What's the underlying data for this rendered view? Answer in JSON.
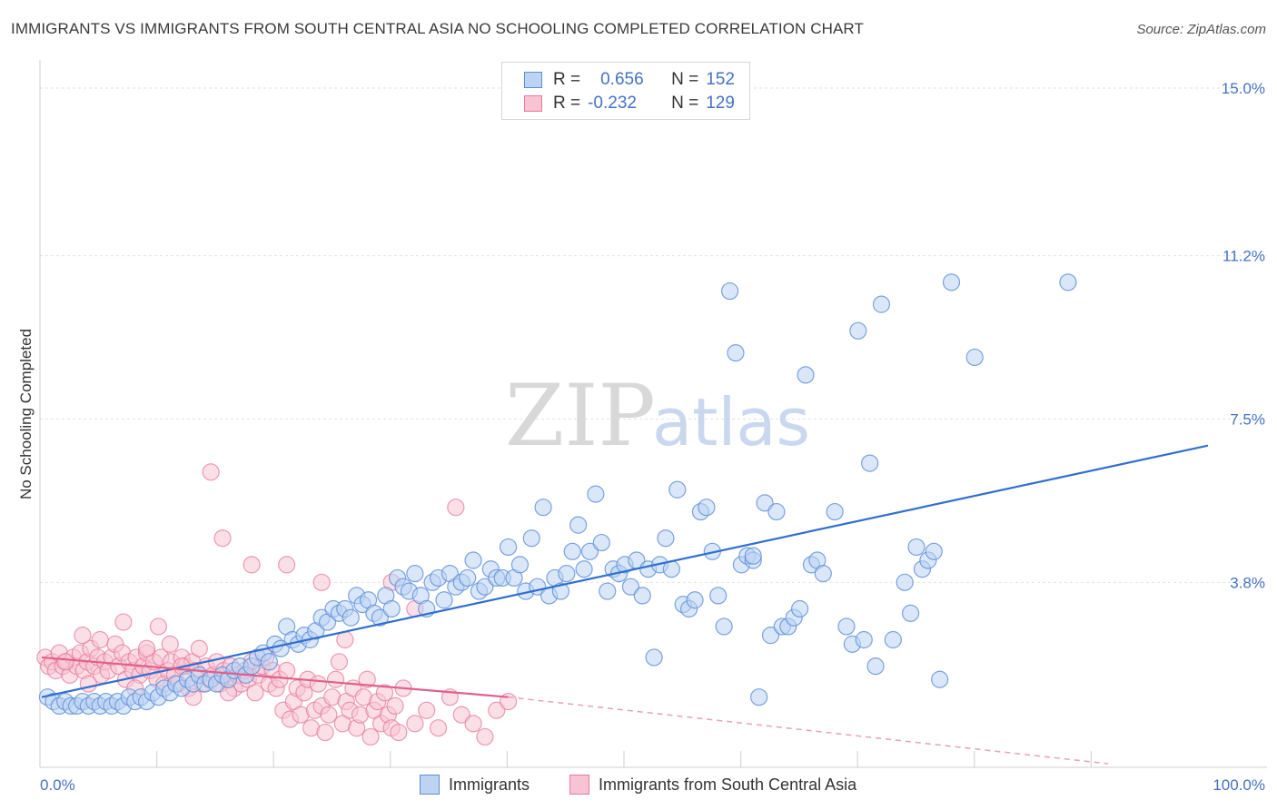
{
  "title": "IMMIGRANTS VS IMMIGRANTS FROM SOUTH CENTRAL ASIA NO SCHOOLING COMPLETED CORRELATION CHART",
  "source": "Source: ZipAtlas.com",
  "watermark": {
    "zip": "ZIP",
    "atlas": "atlas"
  },
  "legend_stats": [
    {
      "r_label": "R =",
      "r_value": "0.656",
      "n_label": "N =",
      "n_value": "152",
      "color": "#5b8dd9",
      "fill": "#bcd3f2"
    },
    {
      "r_label": "R =",
      "r_value": "-0.232",
      "n_label": "N =",
      "n_value": "129",
      "color": "#e8799d",
      "fill": "#f8c4d4"
    }
  ],
  "chart_data": {
    "type": "scatter",
    "title": "IMMIGRANTS VS IMMIGRANTS FROM SOUTH CENTRAL ASIA NO SCHOOLING COMPLETED CORRELATION CHART",
    "xlabel": "",
    "ylabel": "No Schooling Completed",
    "xlim": [
      0,
      100
    ],
    "ylim": [
      0,
      15.5
    ],
    "x_tick_labels": [
      "0.0%",
      "100.0%"
    ],
    "y_ticks": [
      3.8,
      7.5,
      11.2,
      15.0
    ],
    "y_tick_labels": [
      "3.8%",
      "7.5%",
      "11.2%",
      "15.0%"
    ],
    "grid": true,
    "series": [
      {
        "name": "Immigrants",
        "color": "#5b8dd9",
        "fill": "#bcd3f2",
        "trend": {
          "x": [
            0,
            100
          ],
          "y": [
            1.2,
            6.9
          ]
        },
        "points": [
          [
            0.5,
            1.2
          ],
          [
            1,
            1.1
          ],
          [
            1.5,
            1.0
          ],
          [
            2,
            1.1
          ],
          [
            2.5,
            1.0
          ],
          [
            3,
            1.0
          ],
          [
            3.5,
            1.1
          ],
          [
            4,
            1.0
          ],
          [
            4.5,
            1.1
          ],
          [
            5,
            1.0
          ],
          [
            5.5,
            1.1
          ],
          [
            6,
            1.0
          ],
          [
            6.5,
            1.1
          ],
          [
            7,
            1.0
          ],
          [
            7.5,
            1.2
          ],
          [
            8,
            1.1
          ],
          [
            8.5,
            1.2
          ],
          [
            9,
            1.1
          ],
          [
            9.5,
            1.3
          ],
          [
            10,
            1.2
          ],
          [
            10.5,
            1.4
          ],
          [
            11,
            1.3
          ],
          [
            11.5,
            1.5
          ],
          [
            12,
            1.4
          ],
          [
            12.5,
            1.6
          ],
          [
            13,
            1.5
          ],
          [
            13.5,
            1.7
          ],
          [
            14,
            1.5
          ],
          [
            14.5,
            1.6
          ],
          [
            15,
            1.5
          ],
          [
            15.5,
            1.7
          ],
          [
            16,
            1.6
          ],
          [
            16.5,
            1.8
          ],
          [
            17,
            1.9
          ],
          [
            17.5,
            1.7
          ],
          [
            18,
            1.9
          ],
          [
            18.5,
            2.1
          ],
          [
            19,
            2.2
          ],
          [
            19.5,
            2.0
          ],
          [
            20,
            2.4
          ],
          [
            20.5,
            2.3
          ],
          [
            21,
            2.8
          ],
          [
            21.5,
            2.5
          ],
          [
            22,
            2.4
          ],
          [
            22.5,
            2.6
          ],
          [
            23,
            2.5
          ],
          [
            23.5,
            2.7
          ],
          [
            24,
            3.0
          ],
          [
            24.5,
            2.9
          ],
          [
            25,
            3.2
          ],
          [
            25.5,
            3.1
          ],
          [
            26,
            3.2
          ],
          [
            26.5,
            3.0
          ],
          [
            27,
            3.5
          ],
          [
            27.5,
            3.3
          ],
          [
            28,
            3.4
          ],
          [
            28.5,
            3.1
          ],
          [
            29,
            3.0
          ],
          [
            29.5,
            3.5
          ],
          [
            30,
            3.2
          ],
          [
            30.5,
            3.9
          ],
          [
            31,
            3.7
          ],
          [
            31.5,
            3.6
          ],
          [
            32,
            4.0
          ],
          [
            32.5,
            3.5
          ],
          [
            33,
            3.2
          ],
          [
            33.5,
            3.8
          ],
          [
            34,
            3.9
          ],
          [
            34.5,
            3.4
          ],
          [
            35,
            4.0
          ],
          [
            35.5,
            3.7
          ],
          [
            36,
            3.8
          ],
          [
            36.5,
            3.9
          ],
          [
            37,
            4.3
          ],
          [
            37.5,
            3.6
          ],
          [
            38,
            3.7
          ],
          [
            38.5,
            4.1
          ],
          [
            39,
            3.9
          ],
          [
            39.5,
            3.9
          ],
          [
            40,
            4.6
          ],
          [
            40.5,
            3.9
          ],
          [
            41,
            4.2
          ],
          [
            41.5,
            3.6
          ],
          [
            42,
            4.8
          ],
          [
            42.5,
            3.7
          ],
          [
            43,
            5.5
          ],
          [
            43.5,
            3.5
          ],
          [
            44,
            3.9
          ],
          [
            44.5,
            3.6
          ],
          [
            45,
            4.0
          ],
          [
            45.5,
            4.5
          ],
          [
            46,
            5.1
          ],
          [
            46.5,
            4.1
          ],
          [
            47,
            4.5
          ],
          [
            47.5,
            5.8
          ],
          [
            48,
            4.7
          ],
          [
            48.5,
            3.6
          ],
          [
            49,
            4.1
          ],
          [
            49.5,
            4.0
          ],
          [
            50,
            4.2
          ],
          [
            50.5,
            3.7
          ],
          [
            51,
            4.3
          ],
          [
            51.5,
            3.5
          ],
          [
            52,
            4.1
          ],
          [
            52.5,
            2.1
          ],
          [
            53,
            4.2
          ],
          [
            53.5,
            4.8
          ],
          [
            54,
            4.1
          ],
          [
            54.5,
            5.9
          ],
          [
            55,
            3.3
          ],
          [
            55.5,
            3.2
          ],
          [
            56,
            3.4
          ],
          [
            56.5,
            5.4
          ],
          [
            57,
            5.5
          ],
          [
            57.5,
            4.5
          ],
          [
            58,
            3.5
          ],
          [
            58.5,
            2.8
          ],
          [
            59,
            10.4
          ],
          [
            59.5,
            9.0
          ],
          [
            60,
            4.2
          ],
          [
            60.5,
            4.4
          ],
          [
            61,
            4.3
          ],
          [
            61.5,
            1.2
          ],
          [
            62,
            5.6
          ],
          [
            62.5,
            2.6
          ],
          [
            63,
            5.4
          ],
          [
            63.5,
            2.8
          ],
          [
            64,
            2.8
          ],
          [
            64.5,
            3.0
          ],
          [
            65,
            3.2
          ],
          [
            65.5,
            8.5
          ],
          [
            66,
            4.2
          ],
          [
            66.5,
            4.3
          ],
          [
            67,
            4.0
          ],
          [
            68,
            5.4
          ],
          [
            69,
            2.8
          ],
          [
            69.5,
            2.4
          ],
          [
            70,
            9.5
          ],
          [
            70.5,
            2.5
          ],
          [
            71,
            6.5
          ],
          [
            71.5,
            1.9
          ],
          [
            72,
            10.1
          ],
          [
            73,
            2.5
          ],
          [
            74,
            3.8
          ],
          [
            74.5,
            3.1
          ],
          [
            75,
            4.6
          ],
          [
            75.5,
            4.1
          ],
          [
            76,
            4.3
          ],
          [
            76.5,
            4.5
          ],
          [
            77,
            1.6
          ],
          [
            78,
            10.6
          ],
          [
            80,
            8.9
          ],
          [
            88,
            10.6
          ],
          [
            61,
            4.4
          ]
        ]
      },
      {
        "name": "Immigrants from South Central Asia",
        "color": "#e8799d",
        "fill": "#f8c4d4",
        "trend": {
          "x": [
            0,
            40
          ],
          "y": [
            2.1,
            1.2
          ]
        },
        "trend_dashed": {
          "x": [
            40,
            100
          ],
          "y": [
            1.2,
            0.0
          ]
        },
        "points": [
          [
            0.3,
            2.1
          ],
          [
            0.6,
            1.9
          ],
          [
            0.9,
            2.0
          ],
          [
            1.2,
            1.8
          ],
          [
            1.5,
            2.2
          ],
          [
            1.8,
            1.9
          ],
          [
            2.1,
            2.0
          ],
          [
            2.4,
            1.7
          ],
          [
            2.7,
            2.1
          ],
          [
            3,
            1.9
          ],
          [
            3.3,
            2.2
          ],
          [
            3.6,
            1.8
          ],
          [
            3.9,
            2.0
          ],
          [
            4.2,
            2.3
          ],
          [
            4.5,
            1.9
          ],
          [
            4.8,
            2.1
          ],
          [
            5.1,
            1.7
          ],
          [
            5.4,
            2.0
          ],
          [
            5.7,
            1.8
          ],
          [
            6,
            2.1
          ],
          [
            6.3,
            2.4
          ],
          [
            6.6,
            1.9
          ],
          [
            6.9,
            2.2
          ],
          [
            7.2,
            1.6
          ],
          [
            7.5,
            2.0
          ],
          [
            7.8,
            1.8
          ],
          [
            8.1,
            2.1
          ],
          [
            8.4,
            1.7
          ],
          [
            8.7,
            1.9
          ],
          [
            9,
            2.2
          ],
          [
            9.3,
            1.8
          ],
          [
            9.6,
            2.0
          ],
          [
            9.9,
            1.6
          ],
          [
            10.2,
            2.1
          ],
          [
            10.5,
            1.5
          ],
          [
            10.8,
            1.8
          ],
          [
            11.1,
            2.0
          ],
          [
            11.4,
            1.7
          ],
          [
            11.7,
            1.5
          ],
          [
            12,
            2.1
          ],
          [
            12.3,
            1.9
          ],
          [
            12.6,
            1.4
          ],
          [
            12.9,
            2.0
          ],
          [
            13.2,
            1.8
          ],
          [
            13.5,
            2.3
          ],
          [
            13.8,
            1.5
          ],
          [
            14.1,
            1.9
          ],
          [
            14.4,
            1.6
          ],
          [
            14.7,
            1.7
          ],
          [
            15,
            2.0
          ],
          [
            15.3,
            1.5
          ],
          [
            15.6,
            1.8
          ],
          [
            15.9,
            1.6
          ],
          [
            16.2,
            1.9
          ],
          [
            16.5,
            1.4
          ],
          [
            16.8,
            1.7
          ],
          [
            17.1,
            1.5
          ],
          [
            17.4,
            1.8
          ],
          [
            17.7,
            1.6
          ],
          [
            18,
            2.0
          ],
          [
            18.3,
            1.3
          ],
          [
            18.6,
            1.7
          ],
          [
            18.9,
            1.9
          ],
          [
            19.2,
            2.1
          ],
          [
            19.5,
            1.5
          ],
          [
            19.8,
            1.8
          ],
          [
            20.1,
            1.4
          ],
          [
            20.4,
            1.6
          ],
          [
            20.7,
            0.9
          ],
          [
            21,
            1.8
          ],
          [
            21.3,
            0.7
          ],
          [
            21.6,
            1.1
          ],
          [
            21.9,
            1.4
          ],
          [
            22.2,
            0.8
          ],
          [
            22.5,
            1.3
          ],
          [
            22.8,
            1.6
          ],
          [
            23.1,
            0.5
          ],
          [
            23.4,
            0.9
          ],
          [
            23.7,
            1.5
          ],
          [
            24,
            1.0
          ],
          [
            24.3,
            0.4
          ],
          [
            24.6,
            0.8
          ],
          [
            24.9,
            1.2
          ],
          [
            25.2,
            1.6
          ],
          [
            25.5,
            2.0
          ],
          [
            25.8,
            0.6
          ],
          [
            26.1,
            1.1
          ],
          [
            26.4,
            0.9
          ],
          [
            26.7,
            1.4
          ],
          [
            27,
            0.5
          ],
          [
            27.3,
            0.8
          ],
          [
            27.6,
            1.2
          ],
          [
            27.9,
            1.6
          ],
          [
            28.2,
            0.3
          ],
          [
            28.5,
            0.9
          ],
          [
            28.8,
            1.1
          ],
          [
            29.1,
            0.6
          ],
          [
            29.4,
            1.3
          ],
          [
            29.7,
            0.8
          ],
          [
            30,
            0.5
          ],
          [
            30.3,
            1.0
          ],
          [
            30.6,
            0.4
          ],
          [
            31,
            1.4
          ],
          [
            32,
            0.6
          ],
          [
            33,
            0.9
          ],
          [
            34,
            0.5
          ],
          [
            35,
            1.2
          ],
          [
            36,
            0.8
          ],
          [
            37,
            0.6
          ],
          [
            38,
            0.3
          ],
          [
            39,
            0.9
          ],
          [
            40,
            1.1
          ],
          [
            14.5,
            6.3
          ],
          [
            15.5,
            4.8
          ],
          [
            18,
            4.2
          ],
          [
            26,
            2.5
          ],
          [
            21,
            4.2
          ],
          [
            24,
            3.8
          ],
          [
            32,
            3.2
          ],
          [
            30,
            3.8
          ],
          [
            35.5,
            5.5
          ],
          [
            8,
            1.4
          ],
          [
            10,
            2.8
          ],
          [
            12,
            1.9
          ],
          [
            5,
            2.5
          ],
          [
            2,
            2.0
          ],
          [
            3.5,
            2.6
          ],
          [
            7,
            2.9
          ],
          [
            9,
            2.3
          ],
          [
            11,
            2.4
          ],
          [
            13,
            1.2
          ],
          [
            16,
            1.3
          ],
          [
            4,
            1.5
          ]
        ]
      }
    ]
  },
  "bottom_legend": [
    {
      "label": "Immigrants",
      "color": "#5b8dd9",
      "fill": "#bcd3f2"
    },
    {
      "label": "Immigrants from South Central Asia",
      "color": "#e8799d",
      "fill": "#f8c4d4"
    }
  ]
}
